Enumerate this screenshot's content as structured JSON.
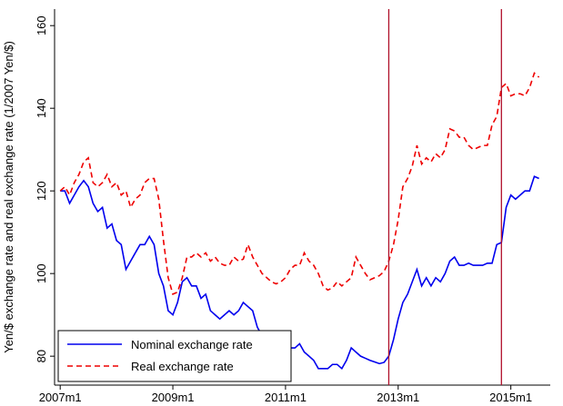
{
  "chart_data": {
    "type": "line",
    "y_label": "Yen/$ exchange rate and real exchange rate (1/2007 Yen/$)",
    "x": [
      2007,
      2007.083,
      2007.167,
      2007.25,
      2007.333,
      2007.417,
      2007.5,
      2007.583,
      2007.667,
      2007.75,
      2007.833,
      2007.917,
      2008,
      2008.083,
      2008.167,
      2008.25,
      2008.333,
      2008.417,
      2008.5,
      2008.583,
      2008.667,
      2008.75,
      2008.833,
      2008.917,
      2009,
      2009.083,
      2009.167,
      2009.25,
      2009.333,
      2009.417,
      2009.5,
      2009.583,
      2009.667,
      2009.75,
      2009.833,
      2009.917,
      2010,
      2010.083,
      2010.167,
      2010.25,
      2010.333,
      2010.417,
      2010.5,
      2010.583,
      2010.667,
      2010.75,
      2010.833,
      2010.917,
      2011,
      2011.083,
      2011.167,
      2011.25,
      2011.333,
      2011.417,
      2011.5,
      2011.583,
      2011.667,
      2011.75,
      2011.833,
      2011.917,
      2012,
      2012.083,
      2012.167,
      2012.25,
      2012.333,
      2012.417,
      2012.5,
      2012.583,
      2012.667,
      2012.75,
      2012.833,
      2012.917,
      2013,
      2013.083,
      2013.167,
      2013.25,
      2013.333,
      2013.417,
      2013.5,
      2013.583,
      2013.667,
      2013.75,
      2013.833,
      2013.917,
      2014,
      2014.083,
      2014.167,
      2014.25,
      2014.333,
      2014.417,
      2014.5,
      2014.583,
      2014.667,
      2014.75,
      2014.833,
      2014.917,
      2015,
      2015.083,
      2015.167,
      2015.25,
      2015.333,
      2015.417,
      2015.5
    ],
    "series": [
      {
        "name": "Nominal exchange rate",
        "color": "#0000ee",
        "dash": false,
        "values": [
          120,
          120,
          117,
          119,
          121,
          122.5,
          121,
          117,
          115,
          116,
          111,
          112,
          108,
          107,
          101,
          103,
          105,
          107,
          107,
          109,
          107,
          100,
          97,
          91,
          90,
          93,
          98,
          99,
          97,
          97,
          94,
          95,
          91,
          90,
          89,
          90,
          91,
          90,
          91,
          93,
          92,
          91,
          87,
          85,
          84,
          82,
          81,
          82,
          83,
          82,
          82,
          83,
          81,
          80,
          79,
          77,
          77,
          77,
          78,
          78,
          77,
          79,
          82,
          81,
          80,
          79.5,
          79,
          78.6,
          78.2,
          78.5,
          80,
          84,
          89,
          93,
          95,
          98,
          101,
          97,
          99,
          97,
          99,
          98,
          100,
          103,
          104,
          102,
          102,
          102.5,
          102,
          102,
          102,
          102.5,
          102.5,
          107,
          107.5,
          116,
          119,
          118,
          119,
          120,
          120,
          123.5,
          123
        ]
      },
      {
        "name": "Real exchange rate",
        "color": "#ee0000",
        "dash": true,
        "values": [
          120,
          121,
          119,
          122,
          124,
          127,
          128,
          122,
          121,
          122,
          124,
          121,
          122,
          119,
          120,
          116,
          118,
          119,
          122,
          123,
          123,
          118,
          108,
          99,
          95,
          95.5,
          99,
          104,
          104,
          105,
          104,
          105,
          103,
          104,
          102.5,
          102,
          102,
          104,
          103,
          103.5,
          107,
          104,
          102,
          100,
          99,
          98,
          97.5,
          98,
          99,
          101,
          102,
          102,
          105,
          103,
          102,
          100,
          97,
          96,
          96.5,
          98,
          97,
          98,
          99,
          104,
          102,
          100,
          98.5,
          99,
          99.5,
          100.5,
          103,
          107,
          113,
          121,
          123,
          126,
          131,
          126.5,
          128,
          127,
          129,
          128,
          130,
          135,
          134.5,
          133,
          133,
          131,
          130,
          130.5,
          131,
          131,
          136,
          138,
          145,
          146,
          143,
          143.5,
          143.5,
          143,
          145,
          148.5,
          147.5
        ]
      }
    ],
    "reference_lines": [
      2012.833,
      2014.833
    ],
    "reference_color": "#b0102a",
    "xlim": [
      2006.9,
      2015.7
    ],
    "ylim": [
      73,
      164
    ],
    "xticks": [
      {
        "value": 2007,
        "label": "2007m1"
      },
      {
        "value": 2009,
        "label": "2009m1"
      },
      {
        "value": 2011,
        "label": "2011m1"
      },
      {
        "value": 2013,
        "label": "2013m1"
      },
      {
        "value": 2015,
        "label": "2015m1"
      }
    ],
    "yticks": [
      80,
      100,
      120,
      140,
      160
    ],
    "legend": "bottom-left"
  }
}
